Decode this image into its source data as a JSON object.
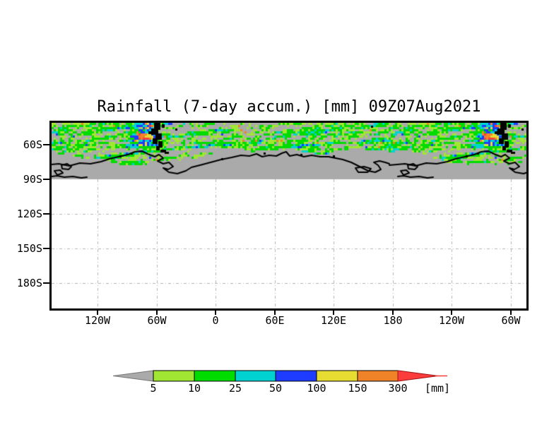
{
  "title": "Rainfall (7-day accum.) [mm] 09Z07Aug2021",
  "axes": {
    "y_ticks": [
      "60S",
      "90S",
      "120S",
      "150S",
      "180S"
    ],
    "x_ticks": [
      "120W",
      "60W",
      "0",
      "60E",
      "120E",
      "180",
      "120W",
      "60W"
    ]
  },
  "colorbar": {
    "levels": [
      "5",
      "10",
      "25",
      "50",
      "100",
      "150",
      "300"
    ],
    "unit": "[mm]",
    "below_color": "#aaaaaa",
    "segment_colors": [
      "#a0e632",
      "#00dc00",
      "#00d2d2",
      "#1e3cff",
      "#e6dc32",
      "#f08228"
    ],
    "above_color": "#fa3c3c"
  },
  "map": {
    "shaded_region_color": "#aaaaaa",
    "coastline_color": "#000000",
    "gridline_color": "#b4b4b4",
    "frame_color": "#000000"
  },
  "chart_data": {
    "type": "heatmap",
    "title": "Rainfall (7-day accum.) [mm] 09Z07Aug2021",
    "variable": "Rainfall (7-day accum.)",
    "unit": "mm",
    "valid_time": "09Z07Aug2021",
    "x_axis": {
      "ticks": [
        "120W",
        "60W",
        "0",
        "60E",
        "120E",
        "180",
        "120W",
        "60W"
      ]
    },
    "y_axis": {
      "ticks": [
        "60S",
        "90S",
        "120S",
        "150S",
        "180S"
      ]
    },
    "legend_levels": [
      5,
      10,
      25,
      50,
      100,
      150,
      300
    ],
    "legend_bins": [
      {
        "range": "<5",
        "color": "#aaaaaa"
      },
      {
        "range": "5-10",
        "color": "#a0e632"
      },
      {
        "range": "10-25",
        "color": "#00dc00"
      },
      {
        "range": "25-50",
        "color": "#00d2d2"
      },
      {
        "range": "50-100",
        "color": "#1e3cff"
      },
      {
        "range": "100-150",
        "color": "#e6dc32"
      },
      {
        "range": "150-300",
        "color": "#f08228"
      },
      {
        "range": ">300",
        "color": "#fa3c3c"
      }
    ],
    "notes": "Rainfall shading occupies the band near the top of the map; region between the rain band and the 90S gridline is shaded gray with black Antarctic coastlines; area below 90S is blank with dash-dot gridlines."
  }
}
